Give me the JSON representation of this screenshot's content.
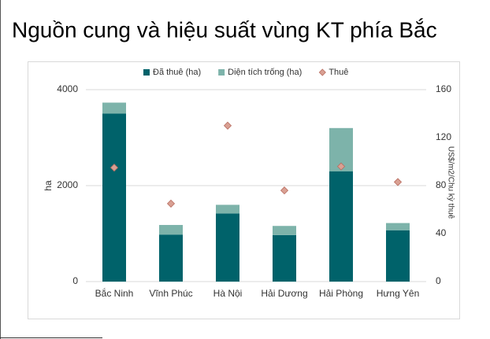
{
  "chart_data": {
    "type": "bar",
    "stacked": true,
    "title": "Nguồn cung và hiệu suất vùng KT phía Bắc",
    "y_label": "ha",
    "y2_label": "US$/m2/Chu kỳ thuê",
    "categories": [
      "Bắc Ninh",
      "Vĩnh Phúc",
      "Hà Nội",
      "Hải Dương",
      "Hải Phòng",
      "Hưng Yên"
    ],
    "series": [
      {
        "name": "Đã thuê (ha)",
        "type": "bar",
        "color": "#00626a",
        "values": [
          3500,
          980,
          1420,
          970,
          2300,
          1070
        ]
      },
      {
        "name": "Diện tích trống (ha)",
        "type": "bar",
        "color": "#7db3aa",
        "values": [
          230,
          200,
          180,
          190,
          900,
          150
        ]
      },
      {
        "name": "Thuê",
        "type": "scatter",
        "marker": "diamond",
        "axis": "y2",
        "color": "#d9a093",
        "values": [
          95,
          65,
          130,
          76,
          96,
          83
        ]
      }
    ],
    "ylim": [
      0,
      4000
    ],
    "yticks": [
      0,
      2000,
      4000
    ],
    "y2lim": [
      0,
      160
    ],
    "y2ticks": [
      0,
      40,
      80,
      120,
      160
    ],
    "grid": true,
    "legend": "top"
  }
}
